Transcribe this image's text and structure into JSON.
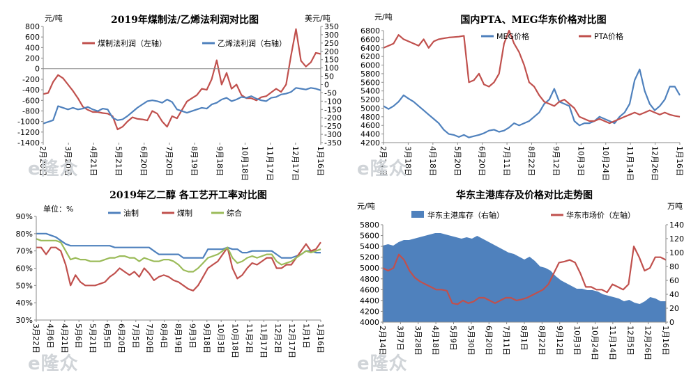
{
  "charts": [
    {
      "type": "line",
      "title": "2019年煤制法/乙烯法利润对比图",
      "yunit_left": "元/吨",
      "yunit_right": "美元/吨",
      "ylim_left": [
        -1400,
        800
      ],
      "yticks_left": [
        800,
        600,
        400,
        200,
        0,
        -200,
        -400,
        -600,
        -800,
        -1000,
        -1200,
        -1400
      ],
      "ylim_right": [
        -350,
        350
      ],
      "yticks_right": [
        350,
        300,
        250,
        200,
        150,
        100,
        50,
        0,
        -50,
        -100,
        -150,
        -200,
        -250,
        -300,
        -350
      ],
      "x_ticks": [
        "2月20日",
        "3月20日",
        "4月21日",
        "5月21日",
        "6月20日",
        "7月20日",
        "8月19日",
        "9月18日",
        "10月18日",
        "11月17日",
        "12月17日",
        "1月16日"
      ],
      "grid": false,
      "legend": "top",
      "series": [
        {
          "name": "煤制法利润（左轴）",
          "axis": "left",
          "color": "#c0504d",
          "values": [
            -480,
            -460,
            -250,
            -120,
            -180,
            -300,
            -420,
            -560,
            -720,
            -780,
            -820,
            -820,
            -840,
            -850,
            -900,
            -1150,
            -1100,
            -1000,
            -920,
            -950,
            -960,
            -980,
            -800,
            -850,
            -1000,
            -1100,
            -900,
            -940,
            -780,
            -620,
            -560,
            -500,
            -380,
            -400,
            -200,
            160,
            -300,
            -80,
            -380,
            -300,
            -500,
            -560,
            -560,
            -600,
            -540,
            -520,
            -450,
            -380,
            -440,
            -300,
            250,
            750,
            150,
            40,
            120,
            300,
            280
          ]
        },
        {
          "name": "乙烯法利润（右轴）",
          "axis": "right",
          "color": "#4f81bd",
          "values": [
            -235,
            -225,
            -215,
            -130,
            -140,
            -150,
            -140,
            -150,
            -145,
            -135,
            -150,
            -160,
            -145,
            -150,
            -200,
            -215,
            -210,
            -190,
            -165,
            -140,
            -120,
            -100,
            -95,
            -100,
            -110,
            -90,
            -105,
            -150,
            -160,
            -170,
            -160,
            -150,
            -140,
            -145,
            -120,
            -110,
            -90,
            -80,
            -100,
            -90,
            -75,
            -80,
            -70,
            -85,
            -95,
            -100,
            -80,
            -75,
            -60,
            -55,
            -45,
            -20,
            -25,
            -30,
            -20,
            -25,
            -35
          ]
        }
      ]
    },
    {
      "type": "line",
      "title": "国内PTA、MEG华东价格对比图",
      "yunit_left": "元/吨",
      "ylim_left": [
        4200,
        6800
      ],
      "yticks_left": [
        6800,
        6600,
        6400,
        6200,
        6000,
        5800,
        5600,
        5400,
        5200,
        5000,
        4800,
        4600,
        4400,
        4200
      ],
      "x_ticks": [
        "2月14日",
        "3月18日",
        "4月18日",
        "5月20日",
        "6月20日",
        "7月11日",
        "8月22日",
        "9月12日",
        "10月3日",
        "10月24日",
        "11月14日",
        "12月26日",
        "1月16日"
      ],
      "grid": false,
      "legend": "top",
      "series": [
        {
          "name": "MEG价格",
          "axis": "left",
          "color": "#4f81bd",
          "values": [
            5050,
            4980,
            5050,
            5150,
            5300,
            5220,
            5150,
            5050,
            4950,
            4850,
            4750,
            4650,
            4500,
            4400,
            4380,
            4330,
            4380,
            4320,
            4350,
            4380,
            4420,
            4480,
            4500,
            4450,
            4480,
            4550,
            4650,
            4600,
            4650,
            4700,
            4800,
            4900,
            5100,
            5200,
            5450,
            5150,
            5100,
            5050,
            4700,
            4600,
            4650,
            4650,
            4700,
            4800,
            4750,
            4700,
            4650,
            4800,
            4900,
            5100,
            5650,
            5900,
            5400,
            5100,
            4950,
            5050,
            5200,
            5500,
            5500,
            5300
          ]
        },
        {
          "name": "PTA价格",
          "axis": "left",
          "color": "#c0504d",
          "values": [
            6400,
            6450,
            6500,
            6700,
            6600,
            6550,
            6500,
            6450,
            6600,
            6400,
            6550,
            6600,
            6620,
            6640,
            6650,
            6660,
            6680,
            5600,
            5650,
            5800,
            5550,
            5500,
            5600,
            5800,
            6500,
            6800,
            6500,
            6300,
            6000,
            5600,
            5500,
            5300,
            5150,
            5100,
            5050,
            5150,
            5200,
            5100,
            5000,
            4800,
            4750,
            4700,
            4700,
            4750,
            4700,
            4650,
            4700,
            4750,
            4800,
            4850,
            4900,
            4850,
            4900,
            4950,
            4900,
            4850,
            4900,
            4850,
            4820,
            4800
          ]
        }
      ]
    },
    {
      "type": "line",
      "title": "2019年乙二醇 各工艺开工率对比图",
      "yunit_left": "单位：%",
      "ylim_left": [
        30,
        90
      ],
      "yticks_left": [
        "90%",
        "80%",
        "70%",
        "60%",
        "50%",
        "40%",
        "30%"
      ],
      "x_ticks": [
        "3月22日",
        "4月6日",
        "4月21日",
        "5月6日",
        "5月21日",
        "6月5日",
        "6月20日",
        "7月5日",
        "7月20日",
        "8月4日",
        "8月19日",
        "9月3日",
        "9月18日",
        "10月3日",
        "10月18日",
        "11月2日",
        "11月17日",
        "12月2日",
        "12月17日",
        "1月1日",
        "1月16日"
      ],
      "grid": false,
      "legend": "top",
      "series": [
        {
          "name": "油制",
          "axis": "left",
          "color": "#4f81bd",
          "values": [
            80,
            80,
            80,
            79,
            78,
            76,
            74,
            73,
            73,
            73,
            73,
            73,
            73,
            73,
            73,
            73,
            72,
            72,
            72,
            72,
            72,
            72,
            72,
            72,
            70,
            68,
            68,
            68,
            68,
            68,
            66,
            66,
            66,
            66,
            66,
            71,
            71,
            71,
            71,
            72,
            71,
            71,
            69,
            69,
            70,
            70,
            70,
            70,
            70,
            68,
            66,
            66,
            66,
            67,
            68,
            70,
            70,
            69,
            69
          ]
        },
        {
          "name": "煤制",
          "axis": "left",
          "color": "#c0504d",
          "values": [
            72,
            72,
            68,
            72,
            72,
            70,
            62,
            50,
            56,
            52,
            50,
            50,
            50,
            51,
            52,
            55,
            57,
            60,
            58,
            56,
            58,
            55,
            60,
            57,
            53,
            55,
            56,
            55,
            53,
            52,
            50,
            48,
            47,
            50,
            55,
            60,
            62,
            64,
            68,
            72,
            60,
            54,
            56,
            60,
            63,
            62,
            64,
            66,
            66,
            60,
            60,
            62,
            62,
            66,
            70,
            74,
            70,
            71,
            75
          ]
        },
        {
          "name": "综合",
          "axis": "left",
          "color": "#9bbb59",
          "values": [
            77,
            76,
            76,
            76,
            76,
            75,
            70,
            65,
            66,
            65,
            65,
            64,
            64,
            64,
            65,
            66,
            66,
            67,
            67,
            66,
            66,
            64,
            66,
            65,
            64,
            64,
            65,
            65,
            64,
            62,
            59,
            58,
            58,
            60,
            63,
            66,
            67,
            68,
            70,
            72,
            66,
            63,
            64,
            66,
            67,
            66,
            67,
            68,
            68,
            64,
            62,
            63,
            64,
            66,
            68,
            70,
            69,
            70,
            71
          ]
        }
      ]
    },
    {
      "type": "area",
      "title": "华东主港库存及价格对比走势图",
      "yunit_left": "元/吨",
      "yunit_right": "万吨",
      "ylim_left": [
        4000,
        5800
      ],
      "yticks_left": [
        5800,
        5600,
        5400,
        5200,
        5000,
        4800,
        4600,
        4400,
        4200,
        4000
      ],
      "ylim_right": [
        0,
        140
      ],
      "yticks_right": [
        140,
        120,
        100,
        80,
        60,
        40,
        20,
        0
      ],
      "x_ticks": [
        "2月14日",
        "3月7日",
        "3月28日",
        "4月18日",
        "5月9日",
        "5月30日",
        "6月20日",
        "7月11日",
        "8月1日",
        "8月22日",
        "9月12日",
        "10月3日",
        "10月24日",
        "11月14日",
        "12月5日",
        "12月26日",
        "1月16日"
      ],
      "grid": false,
      "legend": "top",
      "series": [
        {
          "name": "华东主港库存（右轴）",
          "axis": "right",
          "kind": "area",
          "color": "#4f81bd",
          "values": [
            110,
            112,
            110,
            115,
            118,
            118,
            120,
            122,
            124,
            126,
            128,
            128,
            126,
            124,
            122,
            120,
            122,
            120,
            124,
            120,
            116,
            112,
            108,
            104,
            100,
            98,
            94,
            90,
            94,
            88,
            80,
            78,
            74,
            66,
            60,
            56,
            52,
            48,
            48,
            46,
            46,
            44,
            40,
            38,
            36,
            34,
            30,
            32,
            28,
            26,
            30,
            36,
            34,
            30,
            30
          ]
        },
        {
          "name": "华东市场价（左轴）",
          "axis": "left",
          "kind": "line",
          "color": "#c0504d",
          "values": [
            5000,
            4950,
            5000,
            5250,
            5150,
            4950,
            4820,
            4750,
            4700,
            4650,
            4600,
            4600,
            4580,
            4350,
            4330,
            4400,
            4350,
            4380,
            4450,
            4450,
            4400,
            4350,
            4400,
            4450,
            4450,
            4400,
            4420,
            4450,
            4500,
            4550,
            4600,
            4700,
            4900,
            5100,
            5120,
            5150,
            5100,
            4900,
            4650,
            4650,
            4600,
            4600,
            4550,
            4700,
            4650,
            4600,
            4700,
            5400,
            5200,
            4950,
            5000,
            5200,
            5200,
            5150
          ]
        }
      ]
    }
  ]
}
